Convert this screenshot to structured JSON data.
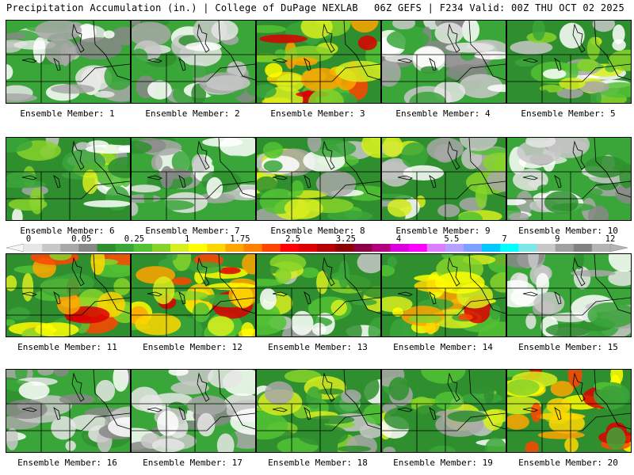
{
  "header": {
    "left": "Precipitation Accumulation (in.) | College of DuPage NEXLAB",
    "right": "06Z GEFS | F234 Valid: 00Z THU OCT 02 2025"
  },
  "colorbar": {
    "ticks": [
      "0",
      "0.05",
      "0.25",
      "1",
      "1.75",
      "2.5",
      "3.25",
      "4",
      "5.5",
      "7",
      "9",
      "12"
    ],
    "colors": [
      "#e6e6e6",
      "#c8c8c8",
      "#a8a8a8",
      "#888888",
      "#2f8f2f",
      "#3aa63a",
      "#52c234",
      "#86d42a",
      "#d8ef1e",
      "#ffff00",
      "#ffd700",
      "#ffa500",
      "#ff7f00",
      "#ff4500",
      "#ff0000",
      "#dc0000",
      "#b40000",
      "#8b0000",
      "#8b0045",
      "#b4007d",
      "#dc00dc",
      "#ff00ff",
      "#dc7dff",
      "#b4a0ff",
      "#7da0ff",
      "#00c8ff",
      "#00ffff",
      "#7de6e6",
      "#c8c8c8",
      "#a0a0a0",
      "#828282",
      "#b4b4b4"
    ]
  },
  "panels": [
    {
      "label": "Ensemble Member: 1",
      "intensity": "low"
    },
    {
      "label": "Ensemble Member: 2",
      "intensity": "low"
    },
    {
      "label": "Ensemble Member: 3",
      "intensity": "high"
    },
    {
      "label": "Ensemble Member: 4",
      "intensity": "low"
    },
    {
      "label": "Ensemble Member: 5",
      "intensity": "medium"
    },
    {
      "label": "Ensemble Member: 6",
      "intensity": "medium"
    },
    {
      "label": "Ensemble Member: 7",
      "intensity": "low"
    },
    {
      "label": "Ensemble Member: 8",
      "intensity": "medium"
    },
    {
      "label": "Ensemble Member: 9",
      "intensity": "medium"
    },
    {
      "label": "Ensemble Member: 10",
      "intensity": "low"
    },
    {
      "label": "Ensemble Member: 11",
      "intensity": "high"
    },
    {
      "label": "Ensemble Member: 12",
      "intensity": "high"
    },
    {
      "label": "Ensemble Member: 13",
      "intensity": "medium"
    },
    {
      "label": "Ensemble Member: 14",
      "intensity": "high"
    },
    {
      "label": "Ensemble Member: 15",
      "intensity": "low"
    },
    {
      "label": "Ensemble Member: 16",
      "intensity": "low"
    },
    {
      "label": "Ensemble Member: 17",
      "intensity": "low"
    },
    {
      "label": "Ensemble Member: 18",
      "intensity": "medium"
    },
    {
      "label": "Ensemble Member: 19",
      "intensity": "medium"
    },
    {
      "label": "Ensemble Member: 20",
      "intensity": "high"
    }
  ]
}
